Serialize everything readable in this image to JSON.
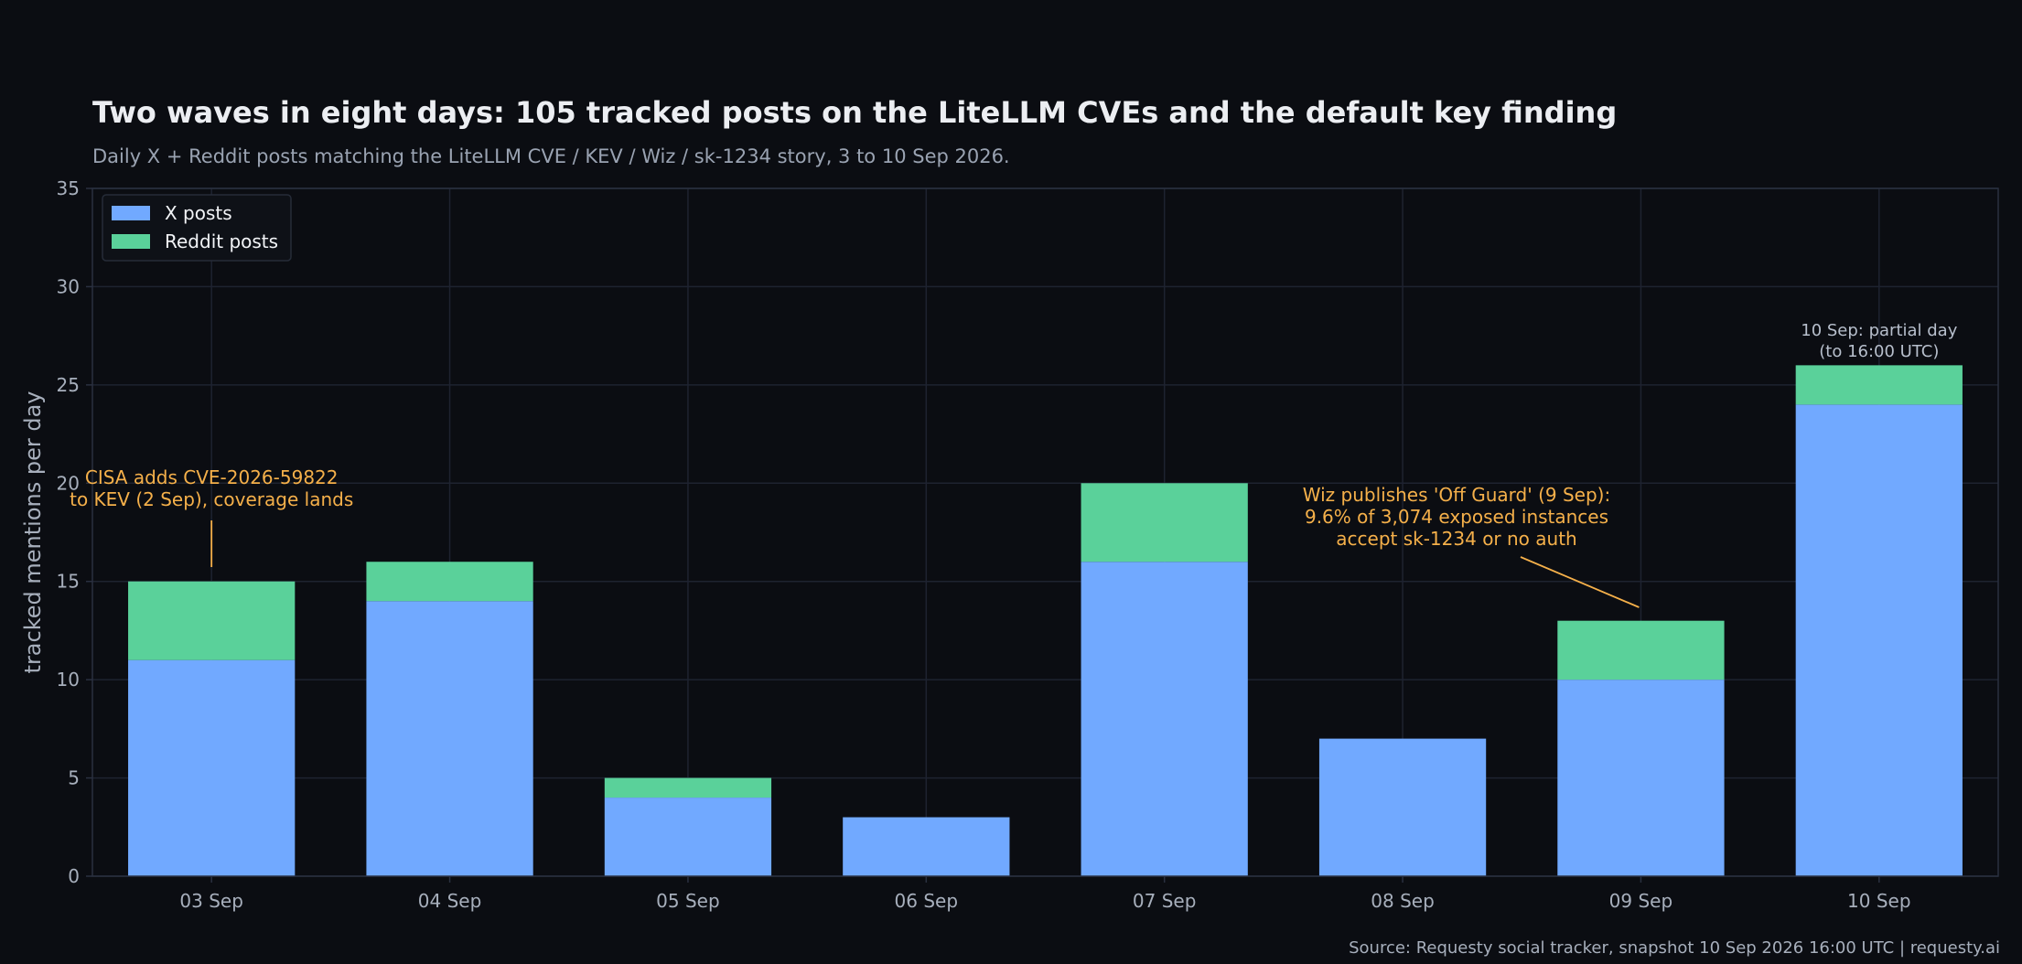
{
  "chart_data": {
    "type": "bar",
    "stacked": true,
    "title": "Two waves in eight days: 105 tracked posts on the LiteLLM CVEs and the default key finding",
    "subtitle": "Daily X + Reddit posts matching the LiteLLM CVE / KEV / Wiz / sk-1234 story, 3 to 10 Sep 2026.",
    "ylabel": "tracked mentions per day",
    "xlabel": "",
    "ylim": [
      0,
      35
    ],
    "yticks": [
      0,
      5,
      10,
      15,
      20,
      25,
      30,
      35
    ],
    "grid": true,
    "legend_position": "top-left",
    "categories": [
      "03 Sep",
      "04 Sep",
      "05 Sep",
      "06 Sep",
      "07 Sep",
      "08 Sep",
      "09 Sep",
      "10 Sep"
    ],
    "series": [
      {
        "name": "X posts",
        "color": "#71a9ff",
        "values": [
          11,
          14,
          4,
          3,
          16,
          7,
          10,
          24
        ]
      },
      {
        "name": "Reddit posts",
        "color": "#5ad19a",
        "values": [
          4,
          2,
          1,
          0,
          4,
          0,
          3,
          2
        ]
      }
    ],
    "annotations": [
      {
        "category": "03 Sep",
        "y": 15,
        "lines": [
          "CISA adds CVE-2026-59822",
          "to KEV (2 Sep), coverage lands"
        ],
        "color": "#f5b04a"
      },
      {
        "category": "09 Sep",
        "y": 13,
        "lines": [
          "Wiz publishes 'Off Guard' (9 Sep):",
          "9.6% of 3,074 exposed instances",
          "accept sk-1234 or no auth"
        ],
        "color": "#f5b04a"
      }
    ],
    "notes": [
      {
        "category": "10 Sep",
        "y": 26,
        "lines": [
          "10 Sep: partial day",
          "(to 16:00 UTC)"
        ]
      }
    ],
    "source": "Source: Requesty social tracker, snapshot 10 Sep 2026 16:00 UTC  |  requesty.ai"
  }
}
